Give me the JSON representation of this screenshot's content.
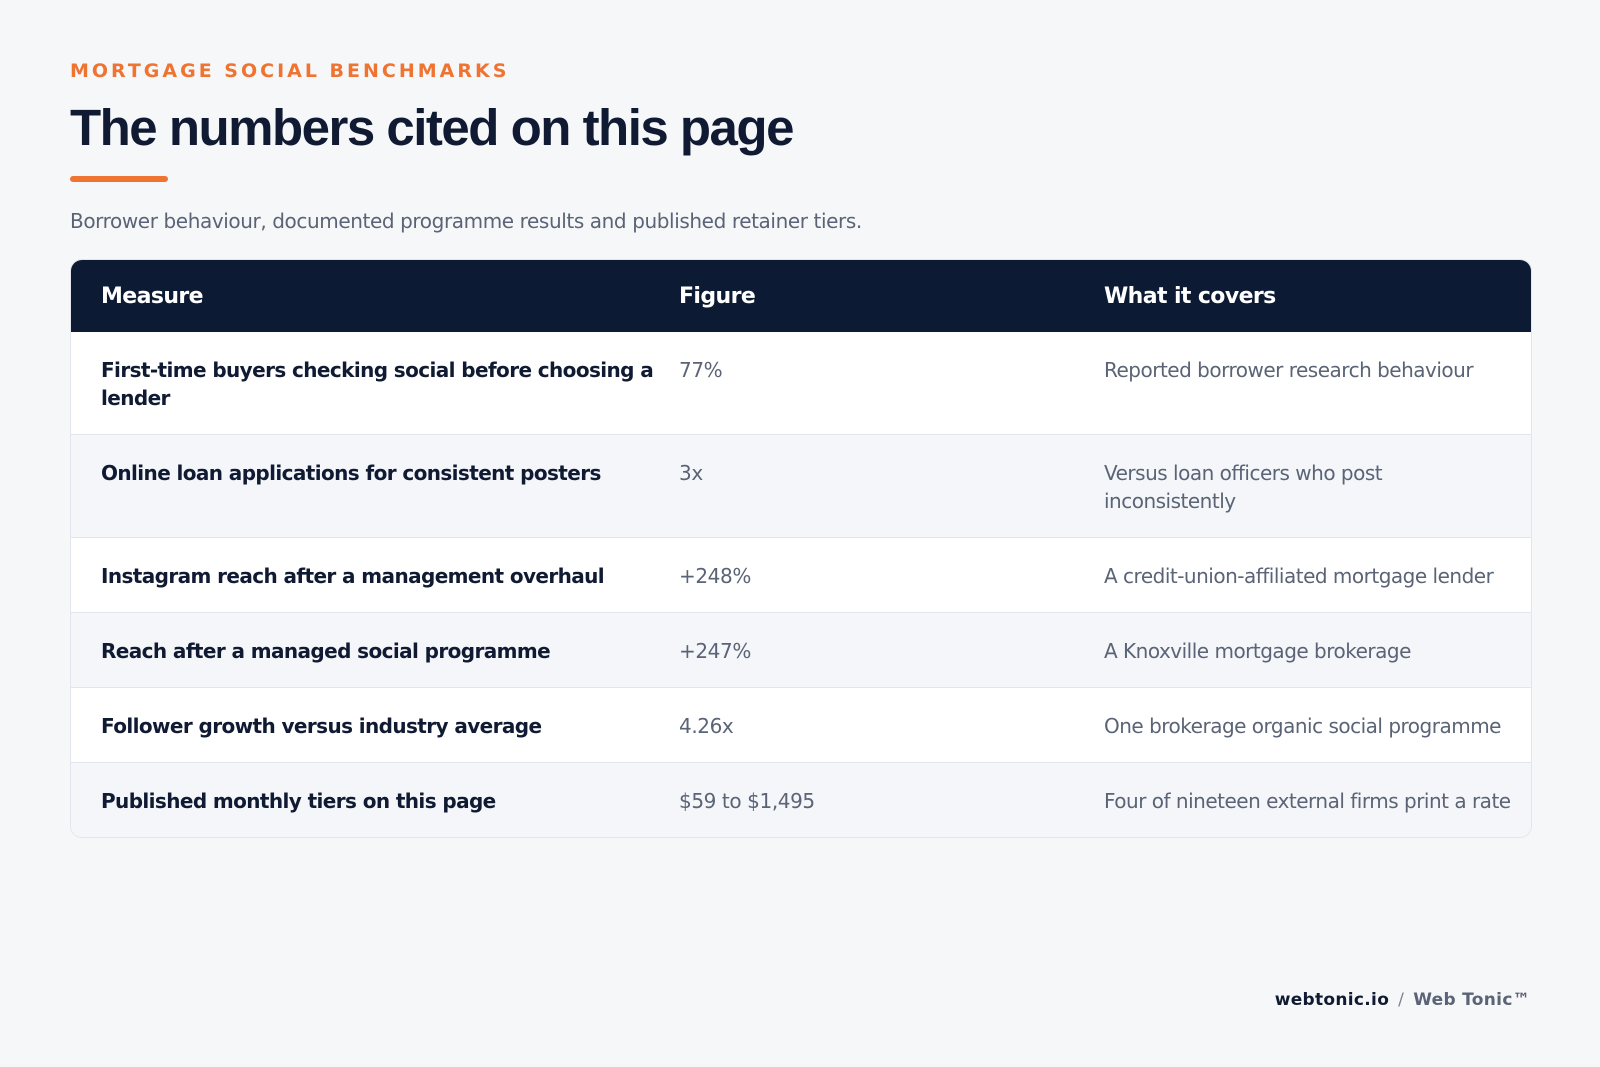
{
  "header": {
    "eyebrow": "MORTGAGE SOCIAL BENCHMARKS",
    "title": "The numbers cited on this page",
    "subtitle": "Borrower behaviour, documented programme results and published retainer tiers."
  },
  "table": {
    "columns": [
      "Measure",
      "Figure",
      "What it covers"
    ],
    "rows": [
      {
        "measure": "First-time buyers checking social before choosing a lender",
        "figure": "77%",
        "covers": "Reported borrower research behaviour"
      },
      {
        "measure": "Online loan applications for consistent posters",
        "figure": "3x",
        "covers": "Versus loan officers who post inconsistently"
      },
      {
        "measure": "Instagram reach after a management overhaul",
        "figure": "+248%",
        "covers": "A credit-union-affiliated mortgage lender"
      },
      {
        "measure": "Reach after a managed social programme",
        "figure": "+247%",
        "covers": "A Knoxville mortgage brokerage"
      },
      {
        "measure": "Follower growth versus industry average",
        "figure": "4.26x",
        "covers": "One brokerage organic social programme"
      },
      {
        "measure": "Published monthly tiers on this page",
        "figure": "$59 to $1,495",
        "covers": "Four of nineteen external firms print a rate"
      }
    ]
  },
  "footer": {
    "domain": "webtonic.io",
    "separator": "/",
    "brand": "Web Tonic™"
  },
  "colors": {
    "accent": "#ef7432",
    "header_bg": "#0c1a33",
    "page_bg": "#f6f7f9"
  }
}
